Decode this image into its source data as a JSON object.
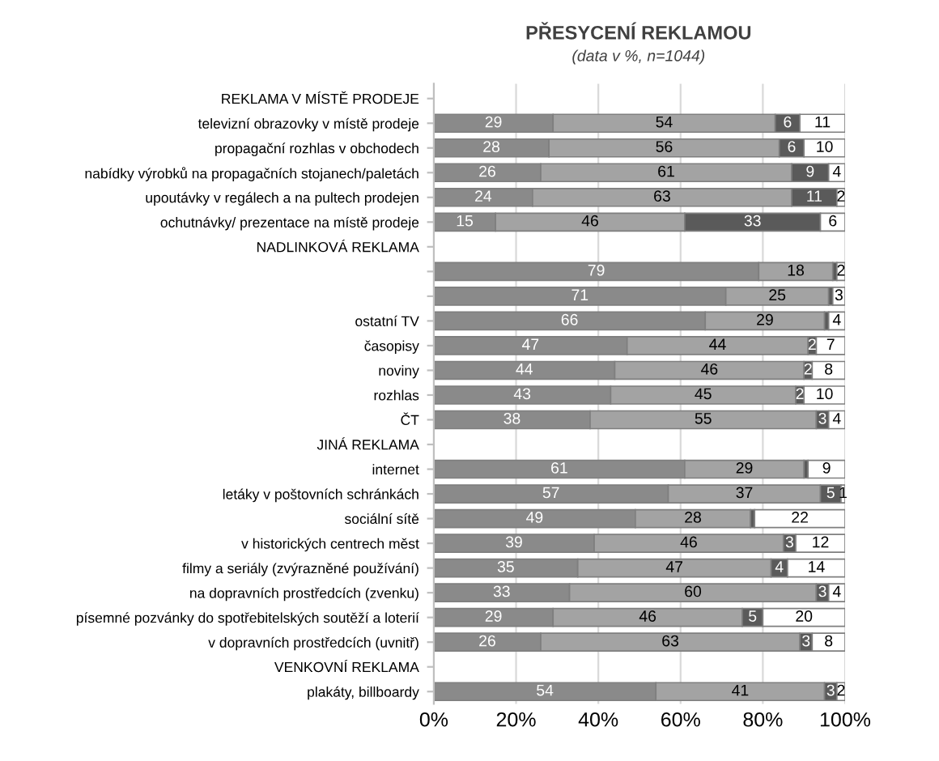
{
  "chart_data": {
    "type": "bar",
    "orientation": "horizontal",
    "stacked": true,
    "title": "PŘESYCENÍ REKLAMOU",
    "subtitle": "(data v %, n=1044)",
    "categories": [
      "REKLAMA V MÍSTĚ PRODEJE",
      "televizní obrazovky v místě prodeje",
      "propagační rozhlas v obchodech",
      "nabídky výrobků na propagačních stojanech/paletách",
      "upoutávky v regálech a na pultech prodejen",
      "ochutnávky/ prezentace na místě prodeje",
      "NADLINKOVÁ REKLAMA",
      null,
      null,
      "ostatní TV",
      "časopisy",
      "noviny",
      "rozhlas",
      "ČT",
      "JINÁ REKLAMA",
      "internet",
      "letáky v poštovních schránkách",
      "sociální sítě",
      "v historických centrech měst",
      "filmy a seriály (zvýrazněné používání)",
      "na dopravních prostředcích (zvenku)",
      "písemné pozvánky do spotřebitelských soutěží a loterií",
      "v dopravních prostředcích (uvnitř)",
      "VENKOVNÍ REKLAMA",
      "plakáty, billboardy"
    ],
    "series": [
      {
        "color": "#8a8a8a",
        "values": [
          null,
          29,
          28,
          26,
          24,
          15,
          null,
          79,
          71,
          66,
          47,
          44,
          43,
          38,
          null,
          61,
          57,
          49,
          39,
          35,
          33,
          29,
          26,
          null,
          54
        ],
        "value_labels": [
          null,
          "29",
          "28",
          "26",
          "24",
          "15",
          null,
          "79",
          "71",
          "66",
          "47",
          "44",
          "43",
          "38",
          null,
          "61",
          "57",
          "49",
          "39",
          "35",
          "33",
          "29",
          "26",
          null,
          "54"
        ]
      },
      {
        "color": "#a3a3a3",
        "values": [
          null,
          54,
          56,
          61,
          63,
          46,
          null,
          18,
          25,
          29,
          44,
          46,
          45,
          55,
          null,
          29,
          37,
          28,
          46,
          47,
          60,
          46,
          63,
          null,
          41
        ],
        "value_labels": [
          null,
          "54",
          "56",
          "61",
          "63",
          "46",
          null,
          "18",
          "25",
          "29",
          "44",
          "46",
          "45",
          "55",
          null,
          "29",
          "37",
          "28",
          "46",
          "47",
          "60",
          "46",
          "63",
          null,
          "41"
        ]
      },
      {
        "color": "#5a5a5a",
        "values": [
          null,
          6,
          6,
          9,
          11,
          33,
          null,
          1,
          1,
          1,
          2,
          2,
          2,
          3,
          null,
          1,
          5,
          1,
          3,
          4,
          3,
          5,
          3,
          null,
          3
        ],
        "value_labels": [
          null,
          "6",
          "6",
          "9",
          "11",
          "33",
          null,
          null,
          null,
          null,
          "2",
          "2",
          "2",
          "3",
          null,
          null,
          "5",
          null,
          "3",
          "4",
          "3",
          "5",
          "3",
          null,
          "3"
        ]
      },
      {
        "color": "#ffffff",
        "values": [
          null,
          11,
          10,
          4,
          2,
          6,
          null,
          2,
          3,
          4,
          7,
          8,
          10,
          4,
          null,
          9,
          1,
          22,
          12,
          14,
          4,
          20,
          8,
          null,
          2
        ],
        "value_labels": [
          null,
          "11",
          "10",
          "4",
          "2",
          "6",
          null,
          "2",
          "3",
          "4",
          "7",
          "8",
          "10",
          "4",
          null,
          "9",
          "1",
          "22",
          "12",
          "14",
          "4",
          "20",
          "8",
          null,
          "2"
        ]
      }
    ],
    "xlim": [
      0,
      100
    ],
    "xticks": [
      {
        "value": 0,
        "label": "0%"
      },
      {
        "value": 20,
        "label": "20%"
      },
      {
        "value": 40,
        "label": "40%"
      },
      {
        "value": 60,
        "label": "60%"
      },
      {
        "value": 80,
        "label": "80%"
      },
      {
        "value": 100,
        "label": "100%"
      }
    ],
    "grid": "x"
  }
}
